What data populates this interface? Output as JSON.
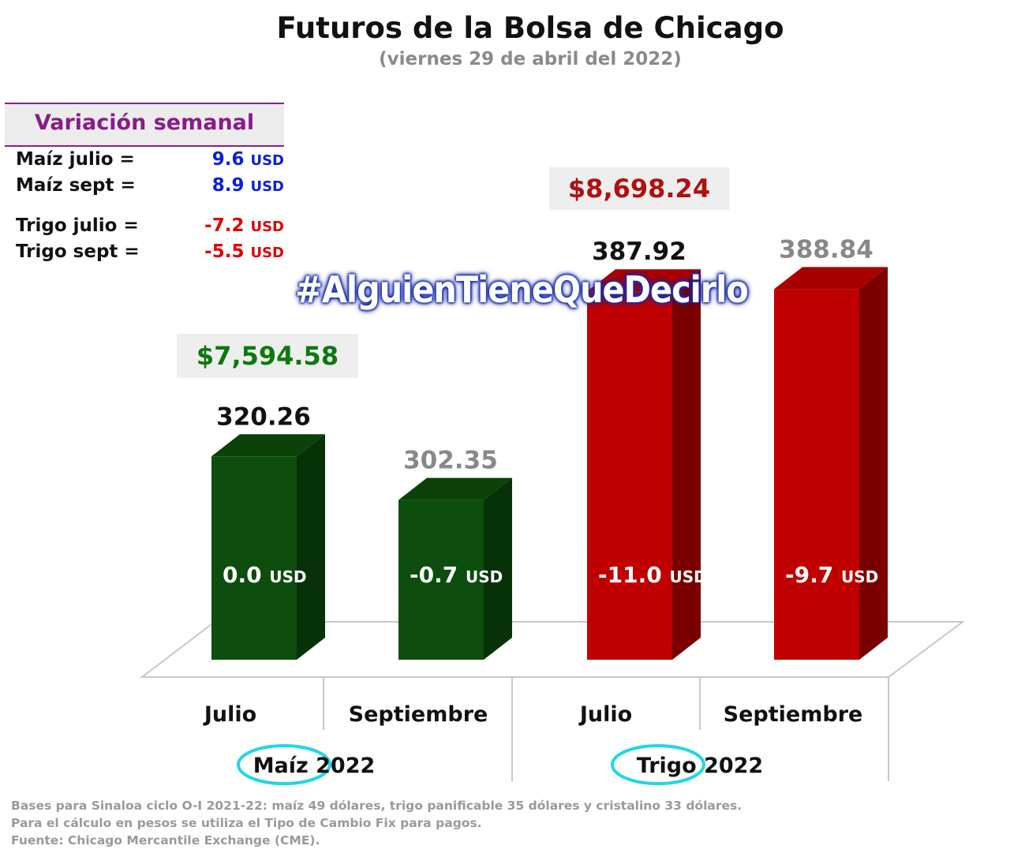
{
  "title": "Futuros de la Bolsa de Chicago",
  "subtitle": "(viernes 29 de abril del 2022)",
  "weekly_variation": {
    "title": "Variación semanal",
    "rows": [
      {
        "label": "Maíz julio  =",
        "value": "9.6",
        "unit": "USD",
        "color": "#0d1fd6"
      },
      {
        "label": "Maíz sept  =",
        "value": "8.9",
        "unit": "USD",
        "color": "#0d1fd6"
      },
      {
        "label": "Trigo julio =",
        "value": "-7.2",
        "unit": "USD",
        "color": "#e00000"
      },
      {
        "label": "Trigo sept =",
        "value": "-5.5",
        "unit": "USD",
        "color": "#e00000"
      }
    ]
  },
  "watermark": "#AlguienTieneQueDecirlo",
  "peso_prices": {
    "maiz": {
      "text": "$7,594.58",
      "color": "#0b7a0b"
    },
    "trigo": {
      "text": "$8,698.24",
      "color": "#b01010"
    }
  },
  "chart_data": {
    "type": "bar",
    "categories": [
      "Julio",
      "Septiembre",
      "Julio",
      "Septiembre"
    ],
    "groups": [
      {
        "label": "Maíz 2022",
        "categories": [
          "Julio",
          "Septiembre"
        ]
      },
      {
        "label": "Trigo 2022",
        "categories": [
          "Julio",
          "Septiembre"
        ]
      }
    ],
    "values": [
      320.26,
      302.35,
      387.92,
      388.84
    ],
    "value_labels": [
      "320.26",
      "302.35",
      "387.92",
      "388.84"
    ],
    "daily_change_labels": [
      "0.0",
      "-0.7",
      "-11.0",
      "-9.7"
    ],
    "daily_change_unit": "USD",
    "colors": [
      "#0d4d0d",
      "#0d4d0d",
      "#c00000",
      "#c00000"
    ],
    "label_colors": [
      "#111111",
      "#888888",
      "#111111",
      "#888888"
    ]
  },
  "footer": {
    "line1": "Bases para Sinaloa ciclo O-I 2021-22: maíz 49 dólares, trigo panificable 35 dólares y cristalino 33 dólares.",
    "line2": "Para el cálculo en pesos se utiliza el Tipo de Cambio Fix para pagos.",
    "line3": "Fuente: Chicago Mercantile Exchange (CME)."
  }
}
